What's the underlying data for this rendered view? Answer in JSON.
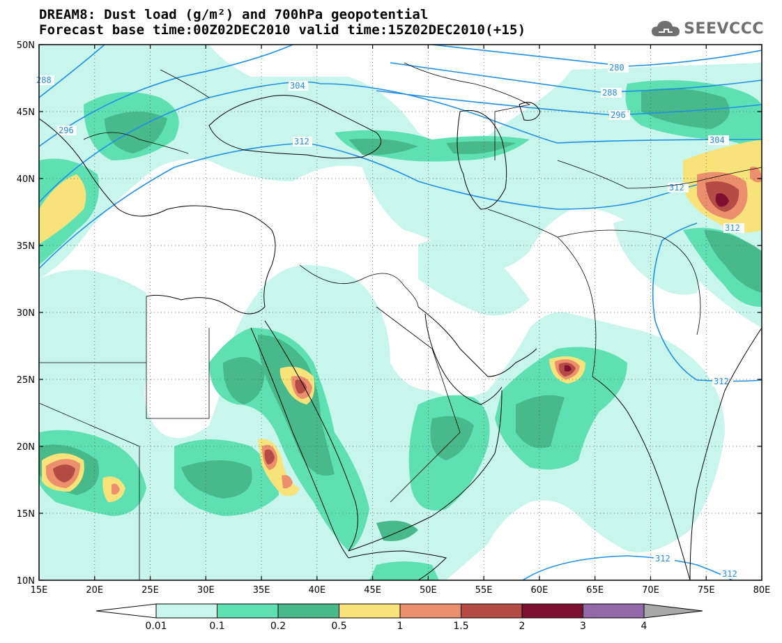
{
  "title": {
    "line1": "DREAM8: Dust load (g/m²) and 700hPa geopotential",
    "line2": "Forecast base time:00Z02DEC2010 valid time:15Z02DEC2010(+15)"
  },
  "logo": {
    "text": "SEEVCCC",
    "icon": "cloud-icon"
  },
  "map": {
    "lon_ticks": [
      "15E",
      "20E",
      "25E",
      "30E",
      "35E",
      "40E",
      "45E",
      "50E",
      "55E",
      "60E",
      "65E",
      "70E",
      "75E",
      "80E"
    ],
    "lat_ticks": [
      "50N",
      "45N",
      "40N",
      "35N",
      "30N",
      "25N",
      "20N",
      "15N",
      "10N"
    ],
    "lon_range": [
      15,
      80
    ],
    "lat_range": [
      10,
      50
    ],
    "grid": true
  },
  "contour_labels": [
    {
      "value": "288"
    },
    {
      "value": "296"
    },
    {
      "value": "304"
    },
    {
      "value": "312"
    },
    {
      "value": "280"
    },
    {
      "value": "288"
    },
    {
      "value": "296"
    },
    {
      "value": "304"
    },
    {
      "value": "312"
    },
    {
      "value": "312"
    },
    {
      "value": "312"
    },
    {
      "value": "312"
    },
    {
      "value": "312"
    }
  ],
  "colorbar": {
    "labels": [
      "0.01",
      "0.1",
      "0.2",
      "0.5",
      "1",
      "1.5",
      "2",
      "3",
      "4"
    ],
    "colors": [
      "#c8f5ec",
      "#5fe0b3",
      "#48b98a",
      "#f7e37a",
      "#ec8f6c",
      "#b44b45",
      "#7d1030",
      "#9367a7"
    ],
    "under_color": "#ffffff",
    "over_color": "#a8a8a8"
  },
  "legend_colors": {
    "contour": "#1e90e6",
    "border": "#000000"
  }
}
